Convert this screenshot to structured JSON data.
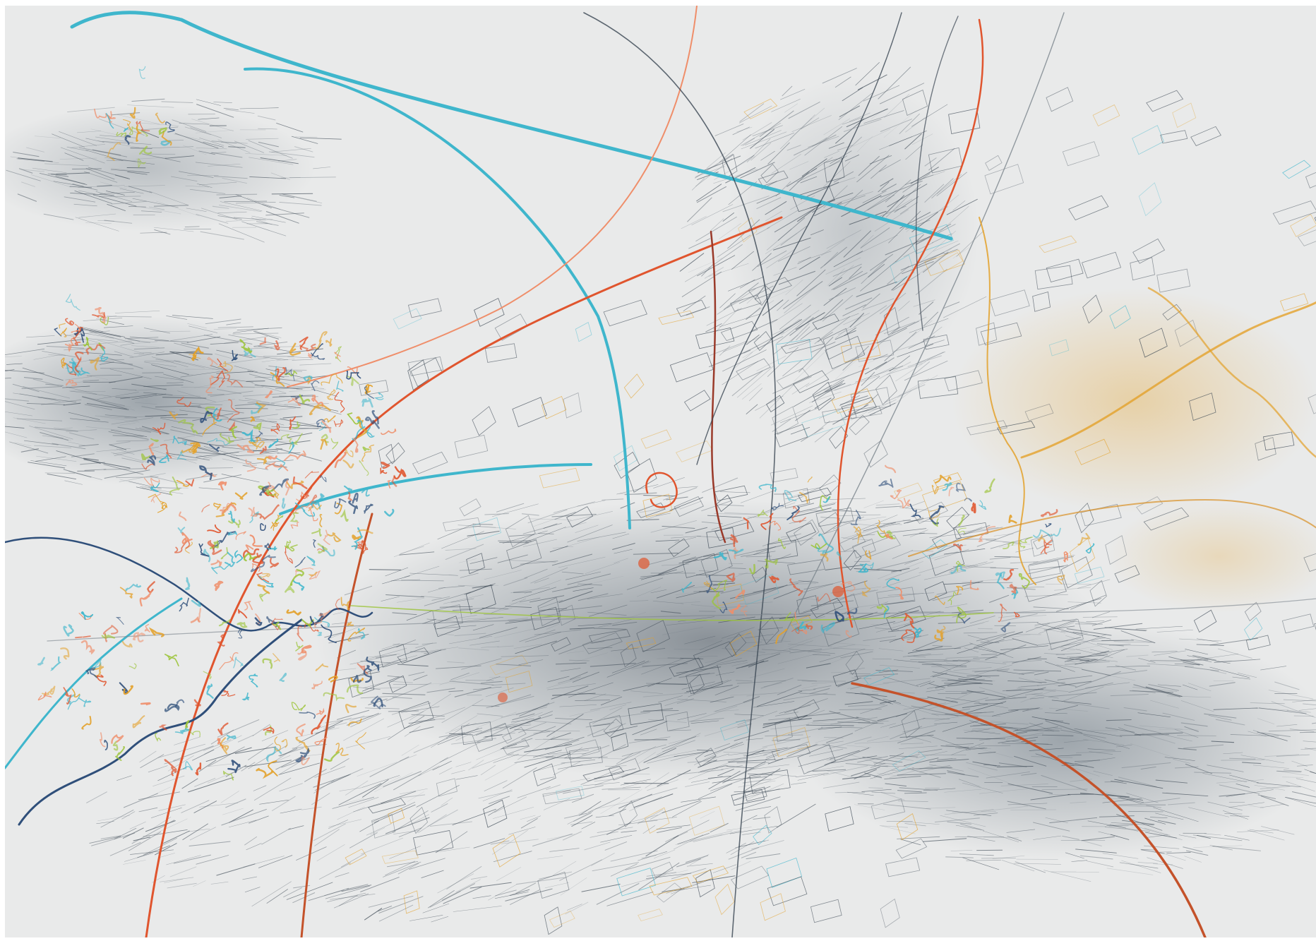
{
  "artwork": {
    "subject": "abstract-pencil-drawing",
    "background": "#e9eaea",
    "palette": {
      "graphite": "#3a4652",
      "graphite_light": "#7b848c",
      "slate_blue": "#2f4f7a",
      "cyan": "#3fb6cc",
      "orange_red": "#e0552e",
      "salmon": "#ef8e6a",
      "ochre": "#e3a12a",
      "lime": "#9cc43a",
      "dark_red": "#9a3a2a"
    }
  }
}
